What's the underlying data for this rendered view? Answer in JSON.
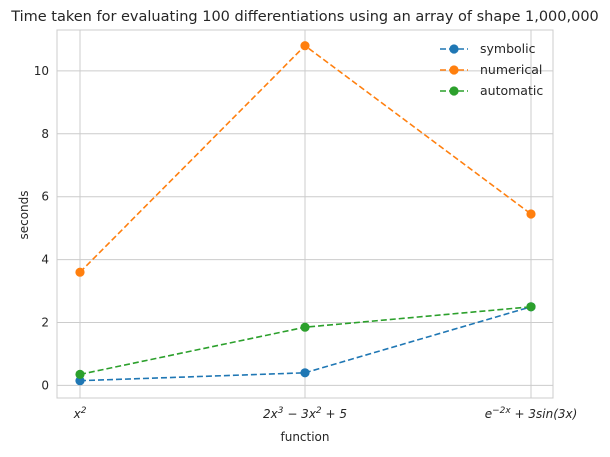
{
  "chart_data": {
    "type": "line",
    "title": "Time taken for evaluating 100 differentiations using an array of shape 1,000,000",
    "xlabel": "function",
    "ylabel": "seconds",
    "categories": [
      {
        "base": "x",
        "sup": "2",
        "tail": ""
      },
      {
        "base": "2x",
        "sup": "3",
        "tail": " − 3x",
        "sup2": "2",
        "tail2": " + 5"
      },
      {
        "base": "e",
        "sup": "−2x",
        "tail": " + 3sin(3x)"
      }
    ],
    "y_ticks": [
      "0",
      "2",
      "4",
      "6",
      "8",
      "10"
    ],
    "ylim": [
      -0.4,
      11.3
    ],
    "grid": true,
    "legend_position": "top-right",
    "series": [
      {
        "name": "symbolic",
        "color": "#1f77b4",
        "linestyle": "dashed",
        "marker": "circle",
        "values": [
          0.15,
          0.4,
          2.5
        ]
      },
      {
        "name": "numerical",
        "color": "#ff7f0e",
        "linestyle": "dashed",
        "marker": "circle",
        "values": [
          3.6,
          10.8,
          5.45
        ]
      },
      {
        "name": "automatic",
        "color": "#2ca02c",
        "linestyle": "dashed",
        "marker": "circle",
        "values": [
          0.35,
          1.85,
          2.5
        ]
      }
    ]
  }
}
